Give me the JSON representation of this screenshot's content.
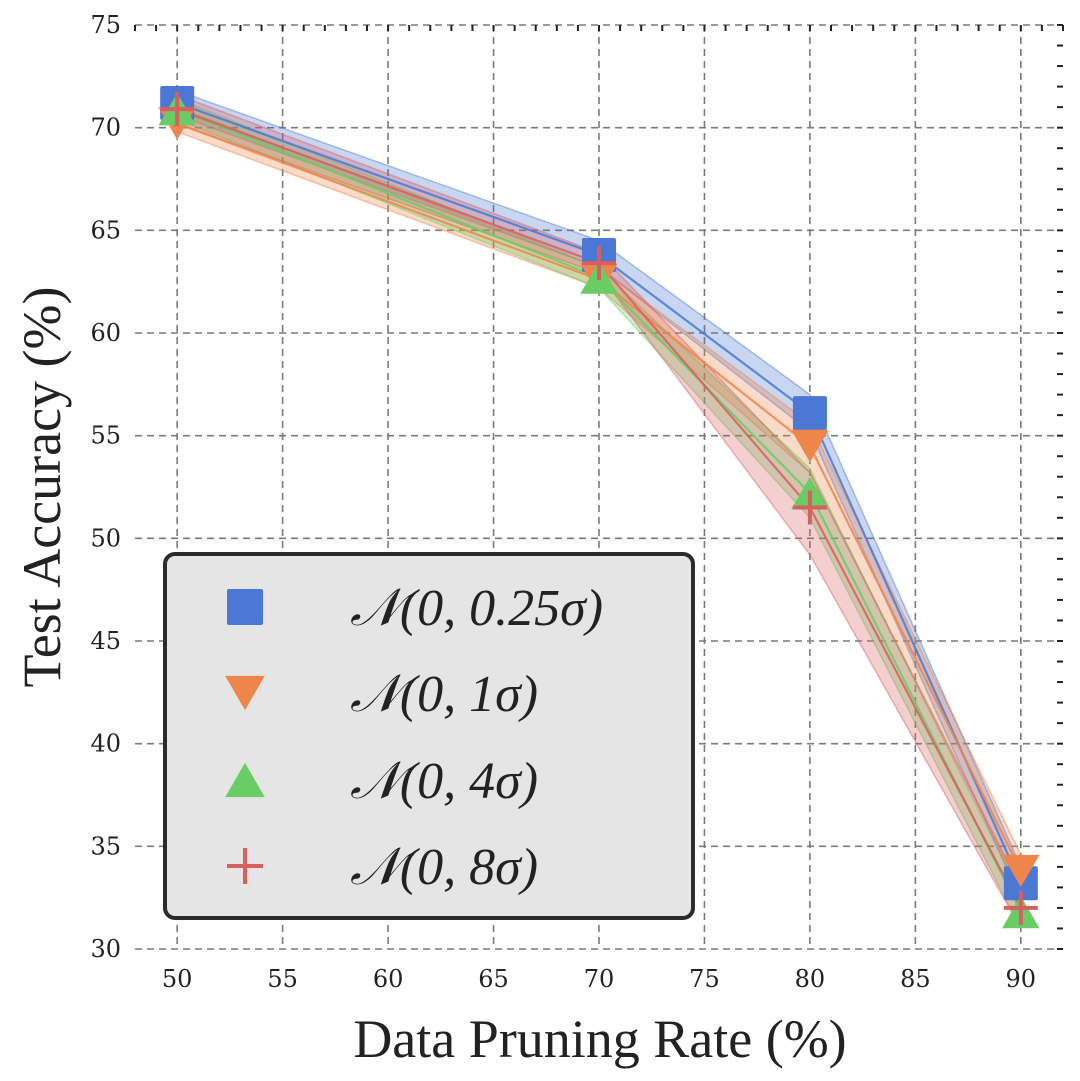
{
  "chart_data": {
    "type": "line",
    "xlabel": "Data Pruning Rate (%)",
    "ylabel": "Test Accuracy (%)",
    "xlim": [
      48,
      92
    ],
    "ylim": [
      30,
      75
    ],
    "xticks": [
      "50",
      "55",
      "60",
      "65",
      "70",
      "75",
      "80",
      "85",
      "90"
    ],
    "yticks": [
      "30",
      "35",
      "40",
      "45",
      "50",
      "55",
      "60",
      "65",
      "70",
      "75"
    ],
    "grid": true,
    "legend_position": "lower-left",
    "x": [
      50,
      70,
      80,
      90
    ],
    "series": [
      {
        "name": "𝒩(0, 0.25σ)",
        "marker": "square",
        "color": "#4a78d4",
        "values": [
          71.2,
          63.8,
          56.1,
          33.2
        ],
        "lower": [
          70.6,
          63.2,
          55.2,
          32.4
        ],
        "upper": [
          71.8,
          64.5,
          57.0,
          34.0
        ]
      },
      {
        "name": "𝒩(0, 1σ)",
        "marker": "triangle-down",
        "color": "#ee854a",
        "values": [
          70.2,
          62.6,
          54.5,
          33.8
        ],
        "lower": [
          69.8,
          62.2,
          53.2,
          32.8
        ],
        "upper": [
          71.0,
          63.2,
          55.6,
          34.6
        ]
      },
      {
        "name": "𝒩(0, 4σ)",
        "marker": "triangle-up",
        "color": "#6acc64",
        "values": [
          70.9,
          62.7,
          52.2,
          31.8
        ],
        "lower": [
          70.4,
          62.2,
          51.0,
          31.0
        ],
        "upper": [
          71.4,
          63.2,
          53.4,
          32.6
        ]
      },
      {
        "name": "𝒩(0, 8σ)",
        "marker": "plus",
        "color": "#d65f5f",
        "values": [
          70.9,
          63.4,
          51.5,
          32.0
        ],
        "lower": [
          70.2,
          62.9,
          49.2,
          31.0
        ],
        "upper": [
          71.6,
          63.9,
          53.2,
          33.0
        ]
      }
    ]
  }
}
